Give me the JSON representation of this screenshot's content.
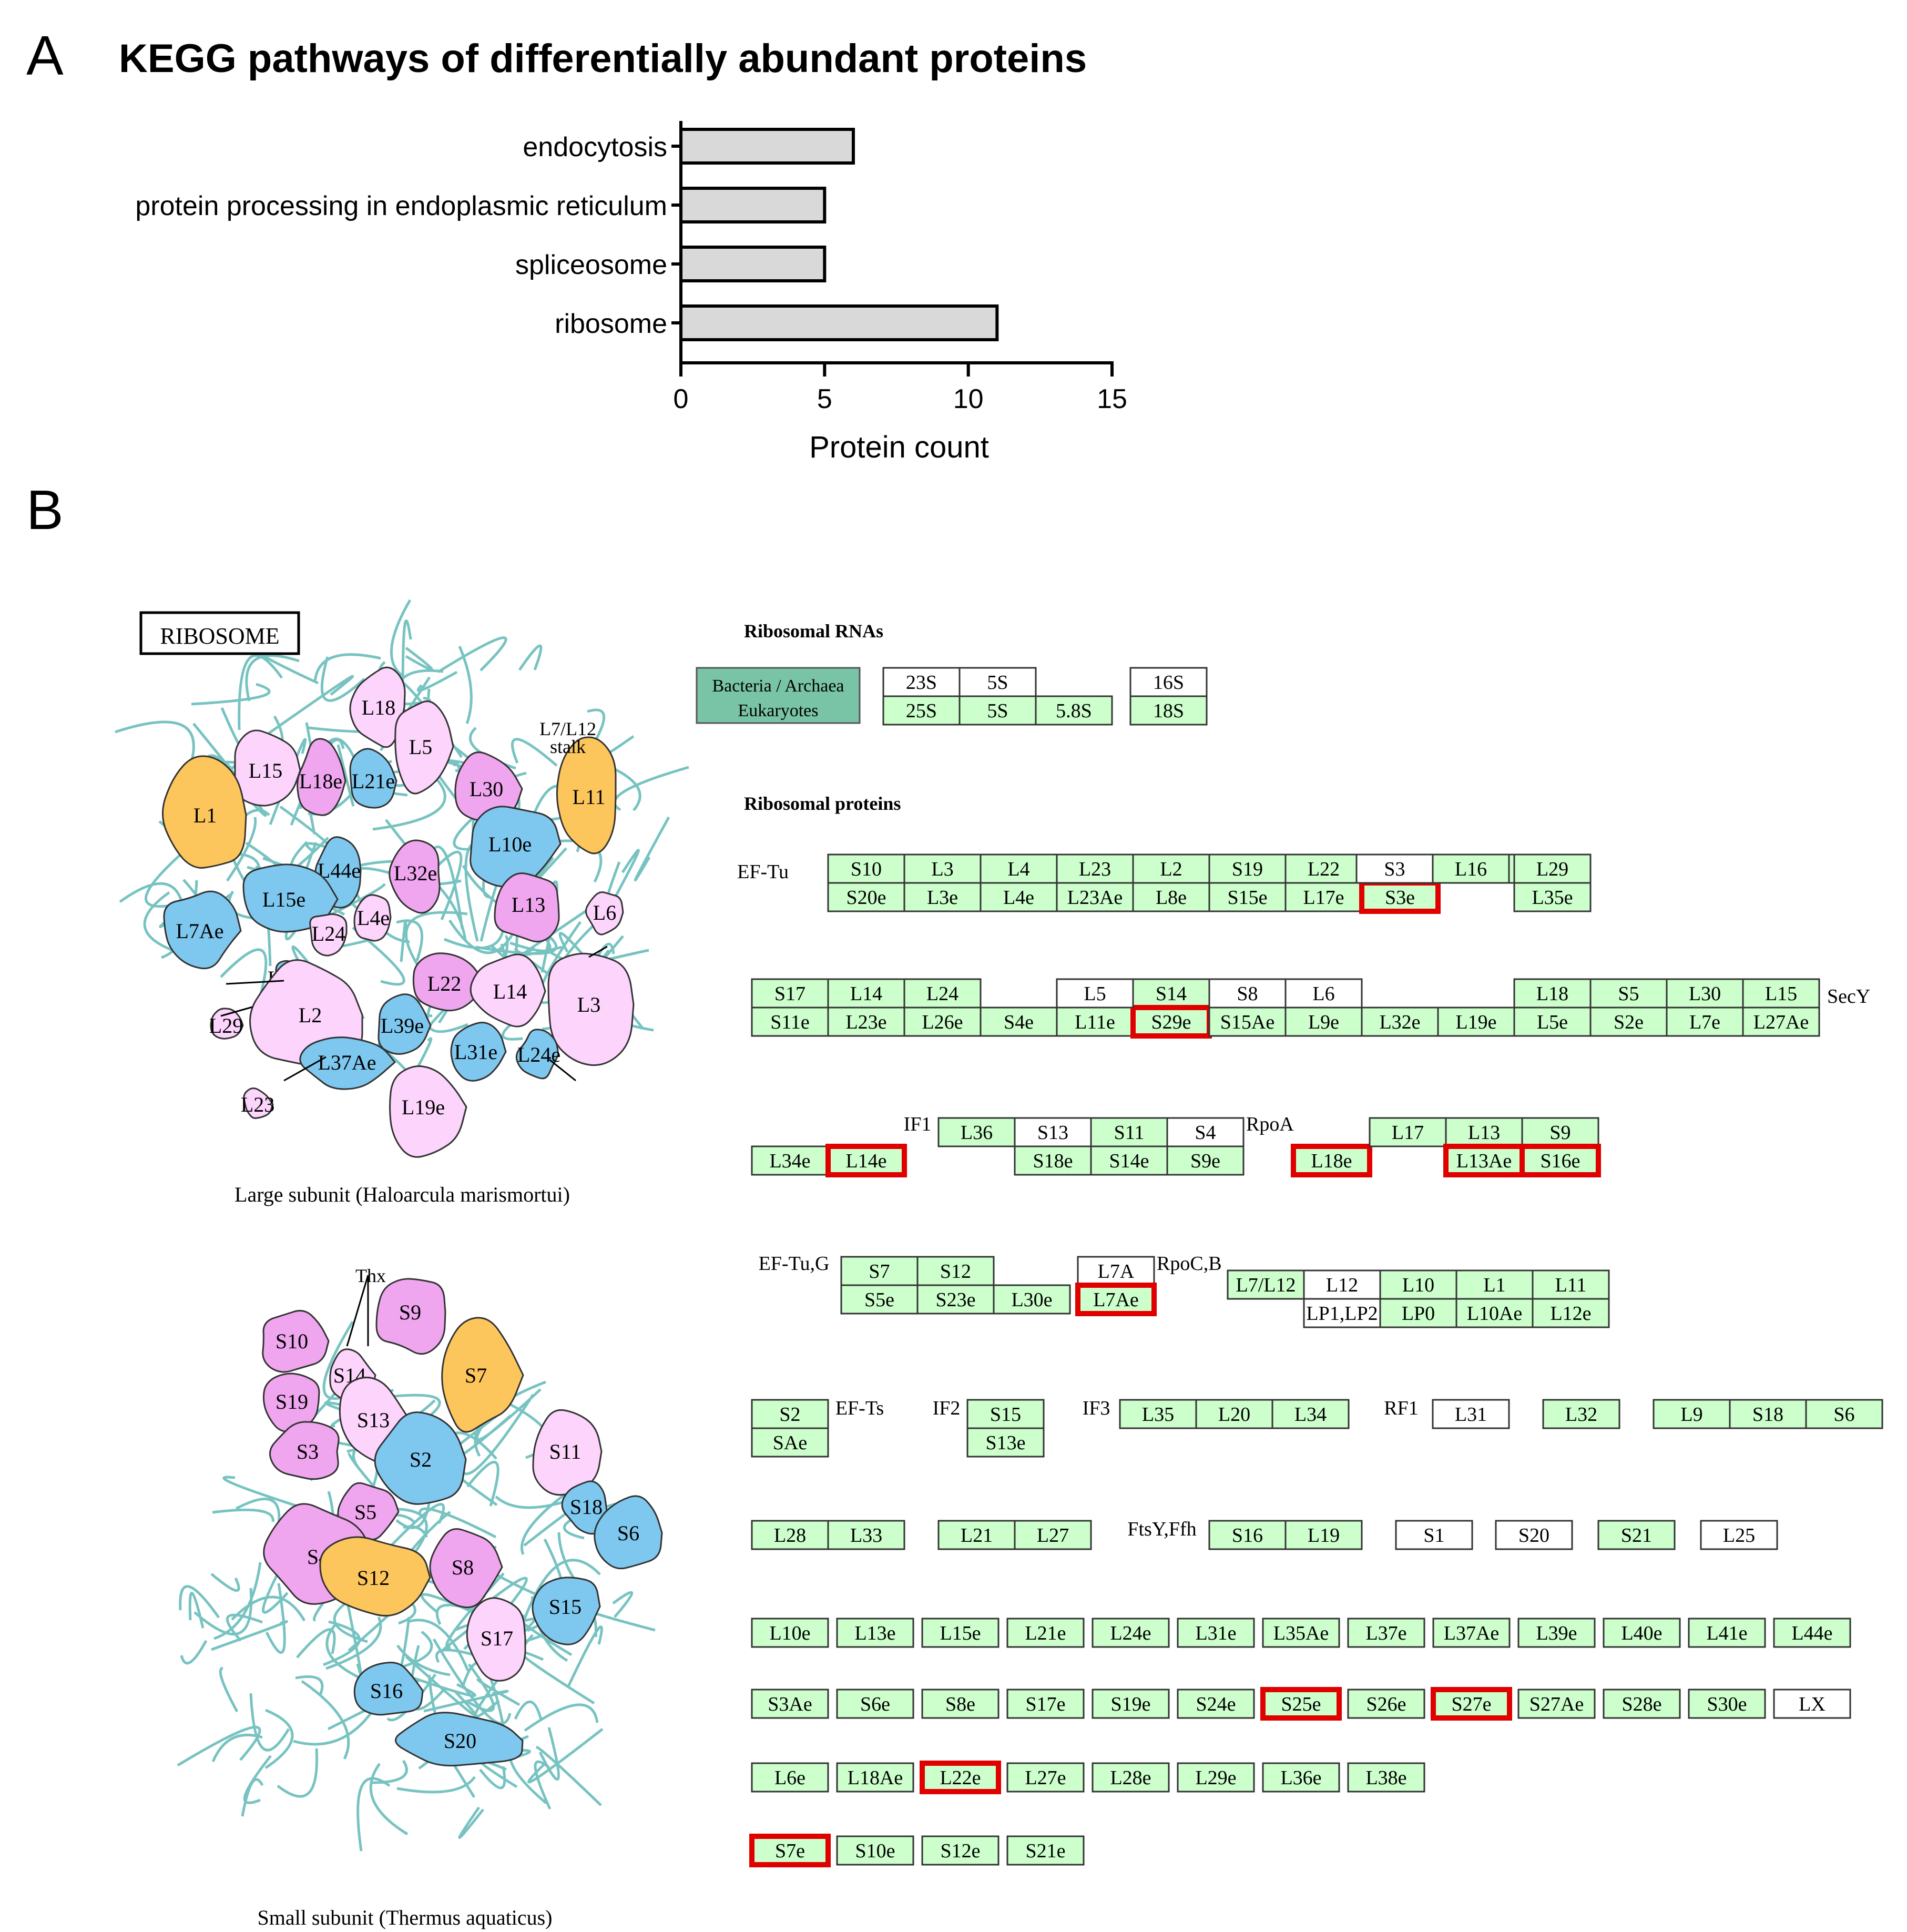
{
  "panel_a": {
    "letter": "A",
    "title": "KEGG pathways of differentially abundant proteins"
  },
  "chart_data": {
    "type": "bar",
    "orientation": "horizontal",
    "title": "KEGG pathways of differentially abundant proteins",
    "categories": [
      "endocytosis",
      "protein processing in endoplasmic reticulum",
      "spliceosome",
      "ribosome"
    ],
    "values": [
      6,
      5,
      5,
      11
    ],
    "xlabel": "Protein count",
    "ylabel": "",
    "xlim": [
      0,
      15
    ],
    "xticks": [
      "0",
      "5",
      "10",
      "15"
    ],
    "bar_color": "#d9d9d9",
    "grid": false
  },
  "panel_b": {
    "letter": "B",
    "ribosome_label": "RIBOSOME",
    "large_subunit_caption": "Large subunit (Haloarcula marismortui)",
    "small_subunit_caption": "Small subunit (Thermus aquaticus)",
    "stalk_label": "L7/L12 stalk",
    "thx_label": "Thx",
    "large_proteins": [
      {
        "label": "L18",
        "color": "light"
      },
      {
        "label": "L5",
        "color": "light"
      },
      {
        "label": "L15",
        "color": "light"
      },
      {
        "label": "L18e",
        "color": "pink"
      },
      {
        "label": "L21e",
        "color": "blue"
      },
      {
        "label": "L30",
        "color": "pink"
      },
      {
        "label": "L1",
        "color": "orange"
      },
      {
        "label": "L11",
        "color": "orange"
      },
      {
        "label": "L10e",
        "color": "blue"
      },
      {
        "label": "L44e",
        "color": "blue"
      },
      {
        "label": "L32e",
        "color": "pink"
      },
      {
        "label": "L15e",
        "color": "blue"
      },
      {
        "label": "L13",
        "color": "pink"
      },
      {
        "label": "L6",
        "color": "light"
      },
      {
        "label": "L7Ae",
        "color": "blue"
      },
      {
        "label": "L24",
        "color": "light"
      },
      {
        "label": "L4e",
        "color": "light"
      },
      {
        "label": "L37e",
        "color": "blue"
      },
      {
        "label": "L22",
        "color": "pink"
      },
      {
        "label": "L14",
        "color": "light"
      },
      {
        "label": "L3",
        "color": "light"
      },
      {
        "label": "L2",
        "color": "light"
      },
      {
        "label": "L29",
        "color": "light"
      },
      {
        "label": "L39e",
        "color": "blue"
      },
      {
        "label": "L31e",
        "color": "blue"
      },
      {
        "label": "L37Ae",
        "color": "blue"
      },
      {
        "label": "L24e",
        "color": "blue"
      },
      {
        "label": "L19e",
        "color": "light"
      },
      {
        "label": "L23",
        "color": "light"
      }
    ],
    "small_proteins": [
      {
        "label": "S10",
        "color": "pink"
      },
      {
        "label": "S9",
        "color": "pink"
      },
      {
        "label": "S7",
        "color": "orange"
      },
      {
        "label": "S14",
        "color": "light"
      },
      {
        "label": "S19",
        "color": "pink"
      },
      {
        "label": "S13",
        "color": "light"
      },
      {
        "label": "S3",
        "color": "pink"
      },
      {
        "label": "S2",
        "color": "blue"
      },
      {
        "label": "S11",
        "color": "light"
      },
      {
        "label": "S18",
        "color": "blue"
      },
      {
        "label": "S6",
        "color": "blue"
      },
      {
        "label": "S5",
        "color": "pink"
      },
      {
        "label": "S4",
        "color": "pink"
      },
      {
        "label": "S12",
        "color": "orange"
      },
      {
        "label": "S8",
        "color": "pink"
      },
      {
        "label": "S15",
        "color": "blue"
      },
      {
        "label": "S17",
        "color": "light"
      },
      {
        "label": "S16",
        "color": "blue"
      },
      {
        "label": "S20",
        "color": "blue"
      }
    ],
    "rna_heading": "Ribosomal RNAs",
    "protein_heading": "Ribosomal proteins",
    "legend_lines": [
      "Bacteria / Archaea",
      "Eukaryotes"
    ],
    "rna_top": [
      "23S",
      "5S",
      "",
      "16S"
    ],
    "rna_bottom": [
      "25S",
      "5S",
      "5.8S",
      "18S"
    ],
    "labels": {
      "ef_tu": "EF-Tu",
      "secy": "SecY",
      "if1": "IF1",
      "rpoa": "RpoA",
      "ef_tug": "EF-Tu,G",
      "rpocb": "RpoC,B",
      "ef_ts": "EF-Ts",
      "if2": "IF2",
      "if3": "IF3",
      "rf1": "RF1",
      "ftsy": "FtsY,Ffh"
    },
    "boxes": [
      [
        "S10",
        ""
      ],
      [
        "S20e",
        "g"
      ],
      [
        "L3",
        ""
      ],
      [
        "L3e",
        "g"
      ],
      [
        "L4",
        ""
      ],
      [
        "L4e",
        "g"
      ],
      [
        "L23",
        ""
      ],
      [
        "L23Ae",
        "g"
      ],
      [
        "L2",
        ""
      ],
      [
        "L8e",
        "g"
      ],
      [
        "S19",
        ""
      ],
      [
        "S15e",
        "g"
      ],
      [
        "L22",
        ""
      ],
      [
        "L17e",
        "g"
      ],
      [
        "S3",
        ""
      ],
      [
        "S3e",
        "gh"
      ],
      [
        "L16",
        ""
      ],
      [
        "L29",
        ""
      ],
      [
        "L35e",
        "g"
      ],
      [
        "S17",
        ""
      ],
      [
        "S11e",
        "g"
      ],
      [
        "L14",
        ""
      ],
      [
        "L23e",
        "g"
      ],
      [
        "L24",
        ""
      ],
      [
        "L26e",
        "g"
      ],
      [
        "S4e",
        "g"
      ],
      [
        "L5",
        ""
      ],
      [
        "L11e",
        "g"
      ],
      [
        "S14",
        ""
      ],
      [
        "S29e",
        "gh"
      ],
      [
        "S8",
        ""
      ],
      [
        "S15Ae",
        "g"
      ],
      [
        "L6",
        ""
      ],
      [
        "L9e",
        "g"
      ],
      [
        "L32e",
        "g"
      ],
      [
        "L19e",
        "g"
      ],
      [
        "L18",
        ""
      ],
      [
        "L5e",
        "g"
      ],
      [
        "S5",
        ""
      ],
      [
        "S2e",
        "g"
      ],
      [
        "L30",
        ""
      ],
      [
        "L7e",
        "g"
      ],
      [
        "L15",
        ""
      ],
      [
        "L27Ae",
        "g"
      ],
      [
        "L34e",
        "g"
      ],
      [
        "L14e",
        "gh"
      ],
      [
        "L36",
        ""
      ],
      [
        "S13",
        ""
      ],
      [
        "S18e",
        "g"
      ],
      [
        "S11",
        ""
      ],
      [
        "S14e",
        "g"
      ],
      [
        "S4",
        ""
      ],
      [
        "S9e",
        "g"
      ],
      [
        "L18e",
        "gh"
      ],
      [
        "L17",
        ""
      ],
      [
        "L13",
        ""
      ],
      [
        "L13Ae",
        "gh"
      ],
      [
        "S9",
        ""
      ],
      [
        "S16e",
        "gh"
      ],
      [
        "S7",
        ""
      ],
      [
        "S5e",
        "g"
      ],
      [
        "S12",
        ""
      ],
      [
        "S23e",
        "g"
      ],
      [
        "L30e",
        "g"
      ],
      [
        "L7A",
        "w"
      ],
      [
        "L7Ae",
        "gh"
      ],
      [
        "L7/L12",
        ""
      ],
      [
        "L12",
        ""
      ],
      [
        "LP1,LP2",
        "w"
      ],
      [
        "L10",
        ""
      ],
      [
        "LP0",
        "g"
      ],
      [
        "L1",
        ""
      ],
      [
        "L10Ae",
        "g"
      ],
      [
        "L11",
        ""
      ],
      [
        "L12e",
        "g"
      ],
      [
        "S2",
        ""
      ],
      [
        "SAe",
        "g"
      ],
      [
        "S15",
        ""
      ],
      [
        "S13e",
        "g"
      ],
      [
        "L35",
        ""
      ],
      [
        "L20",
        ""
      ],
      [
        "L34",
        ""
      ],
      [
        "L31",
        "w"
      ],
      [
        "L32",
        ""
      ],
      [
        "L9",
        ""
      ],
      [
        "S18",
        ""
      ],
      [
        "S6",
        ""
      ],
      [
        "L28",
        ""
      ],
      [
        "L33",
        ""
      ],
      [
        "L21",
        ""
      ],
      [
        "L27",
        ""
      ],
      [
        "S16",
        ""
      ],
      [
        "L19",
        ""
      ],
      [
        "S1",
        "w"
      ],
      [
        "S20",
        "w"
      ],
      [
        "S21",
        ""
      ],
      [
        "L25",
        "w"
      ],
      [
        "L10e",
        "g"
      ],
      [
        "L13e",
        "g"
      ],
      [
        "L15e",
        "g"
      ],
      [
        "L21e",
        "g"
      ],
      [
        "L24e",
        "g"
      ],
      [
        "L31e",
        "g"
      ],
      [
        "L35Ae",
        "g"
      ],
      [
        "L37e",
        "g"
      ],
      [
        "L37Ae",
        "g"
      ],
      [
        "L39e",
        "g"
      ],
      [
        "L40e",
        "g"
      ],
      [
        "L41e",
        "g"
      ],
      [
        "L44e",
        "g"
      ],
      [
        "S3Ae",
        "g"
      ],
      [
        "S6e",
        "g"
      ],
      [
        "S8e",
        "g"
      ],
      [
        "S17e",
        "g"
      ],
      [
        "S19e",
        "g"
      ],
      [
        "S24e",
        "g"
      ],
      [
        "S25e",
        "gh"
      ],
      [
        "S26e",
        "g"
      ],
      [
        "S27e",
        "gh"
      ],
      [
        "S27Ae",
        "g"
      ],
      [
        "S28e",
        "g"
      ],
      [
        "S30e",
        "g"
      ],
      [
        "LX",
        "w"
      ],
      [
        "L6e",
        "g"
      ],
      [
        "L18Ae",
        "g"
      ],
      [
        "L22e",
        "gh"
      ],
      [
        "L27e",
        "g"
      ],
      [
        "L28e",
        "g"
      ],
      [
        "L29e",
        "g"
      ],
      [
        "L36e",
        "g"
      ],
      [
        "L38e",
        "g"
      ],
      [
        "S7e",
        "gh"
      ],
      [
        "S10e",
        "g"
      ],
      [
        "S12e",
        "g"
      ],
      [
        "S21e",
        "g"
      ]
    ],
    "colors": {
      "green": "#ccffcc",
      "highlight": "#e00000",
      "legend": "#79c4a6",
      "blue": "#7ec8f0",
      "pink": "#efa6ef",
      "light": "#fcd4fc",
      "orange": "#fcc65c",
      "rna_strand": "#5fb8b6"
    }
  }
}
